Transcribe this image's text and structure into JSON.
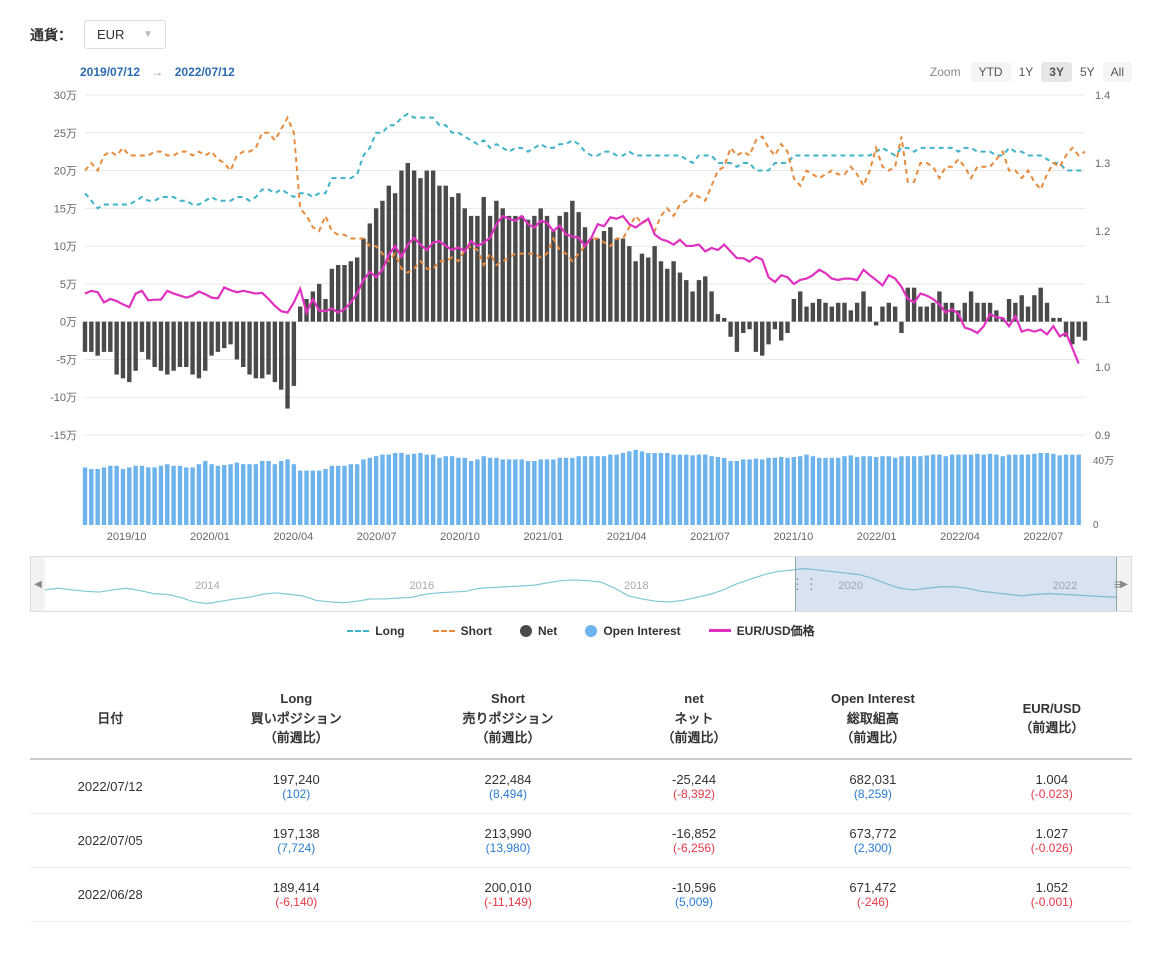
{
  "currency": {
    "label": "通貨：",
    "selected": "EUR"
  },
  "dateRange": {
    "from": "2019/07/12",
    "to": "2022/07/12"
  },
  "zoom": {
    "label": "Zoom",
    "buttons": [
      "YTD",
      "1Y",
      "3Y",
      "5Y",
      "All"
    ],
    "active": "3Y"
  },
  "colors": {
    "long": "#3fb3c9",
    "short": "#e88a3c",
    "net": "#4a4a4a",
    "oi": "#6db3ec",
    "price": "#e030c0",
    "grid": "#e8e8e8",
    "axis_text": "#666666",
    "nav_line": "#7fc9d6"
  },
  "legend": [
    {
      "label": "Long",
      "type": "dash",
      "color": "#3fb3c9"
    },
    {
      "label": "Short",
      "type": "dash",
      "color": "#e88a3c"
    },
    {
      "label": "Net",
      "type": "circle",
      "color": "#4a4a4a"
    },
    {
      "label": "Open Interest",
      "type": "circle",
      "color": "#6db3ec"
    },
    {
      "label": "EUR/USD価格",
      "type": "solid",
      "color": "#e030c0"
    }
  ],
  "chart": {
    "y_left": {
      "min": -15,
      "max": 30,
      "step": 5,
      "suffix": "万"
    },
    "y_right": {
      "min": 0.9,
      "max": 1.4,
      "step": 0.1
    },
    "x_ticks": [
      "2019/10",
      "2020/01",
      "2020/04",
      "2020/07",
      "2020/10",
      "2021/01",
      "2021/04",
      "2021/07",
      "2021/10",
      "2022/01",
      "2022/04",
      "2022/07"
    ],
    "oi_ticks": [
      "0",
      "40万"
    ],
    "net": [
      -4,
      -4,
      -4.5,
      -4,
      -4,
      -7,
      -7.5,
      -8,
      -6.5,
      -4,
      -5,
      -6,
      -6.5,
      -7,
      -6.5,
      -6,
      -6,
      -7,
      -7.5,
      -6.5,
      -4.5,
      -4,
      -3.5,
      -3,
      -5,
      -6,
      -7,
      -7.5,
      -7.5,
      -7,
      -8,
      -9,
      -11.5,
      -8.5,
      2,
      3,
      4,
      5,
      3,
      7,
      7.5,
      7.5,
      8,
      8.5,
      11,
      13,
      15,
      16,
      18,
      17,
      20,
      21,
      20,
      19,
      20,
      20,
      18,
      18,
      16.5,
      17,
      15,
      14,
      14,
      16.5,
      14,
      16,
      15,
      14,
      14,
      14,
      13.5,
      14,
      15,
      14,
      12,
      14,
      14.5,
      16,
      14.5,
      12.5,
      11,
      11,
      12,
      12.5,
      11,
      11,
      10,
      8,
      9,
      8.5,
      10,
      8,
      7,
      8,
      6.5,
      5.5,
      4,
      5.5,
      6,
      4,
      1,
      0.5,
      -2,
      -4,
      -1.5,
      -1,
      -4,
      -4.5,
      -3,
      -1,
      -2.5,
      -1.5,
      3,
      4,
      2,
      2.5,
      3,
      2.5,
      2,
      2.5,
      2.5,
      1.5,
      2.5,
      4,
      2,
      -0.5,
      2,
      2.5,
      2,
      -1.5,
      4.5,
      4.5,
      2,
      2,
      2.5,
      4,
      2.5,
      2.5,
      1.5,
      2.5,
      4,
      2.5,
      2.5,
      2.5,
      1.5,
      0.5,
      3,
      2.5,
      3.5,
      2,
      3.5,
      4.5,
      2.5,
      0.5,
      0.5,
      -2,
      -3,
      -2,
      -2.5
    ],
    "long": [
      17,
      16,
      15,
      15.5,
      15.5,
      15.5,
      15.5,
      15.5,
      16,
      16.5,
      16,
      16,
      16.5,
      16.5,
      16.5,
      16,
      16,
      15.5,
      15.5,
      16,
      16.5,
      16,
      16,
      16,
      16.5,
      16.5,
      16,
      16.5,
      17.5,
      17.5,
      17,
      17.5,
      17,
      16.5,
      17,
      17,
      16.5,
      17,
      17,
      19,
      19,
      19,
      19,
      19.5,
      22,
      23,
      25,
      25,
      26,
      26,
      27,
      27.5,
      27,
      27,
      27,
      27,
      26,
      26,
      25,
      25,
      24.5,
      24,
      23.5,
      24,
      23,
      23.5,
      23,
      22.5,
      23,
      23,
      22.5,
      23,
      23.5,
      23,
      23,
      23.5,
      23.5,
      24,
      23.5,
      22.5,
      22,
      22,
      22.5,
      22.5,
      22,
      22,
      22.5,
      22,
      22,
      22,
      22,
      22,
      22,
      22,
      22,
      21.5,
      21,
      22,
      22,
      22,
      21,
      21,
      21,
      20.5,
      21,
      21,
      20,
      20,
      20,
      21,
      21,
      21,
      22,
      22,
      22,
      22,
      22,
      22,
      22,
      22,
      22,
      22,
      22,
      22,
      22,
      22.5,
      23,
      22.5,
      22,
      23,
      23,
      22.5,
      23,
      23,
      23,
      23,
      23,
      23,
      22.5,
      23,
      23,
      22.5,
      22.5,
      22.5,
      22,
      22,
      23,
      22.5,
      22.5,
      22,
      22,
      22,
      21.5,
      21,
      21,
      20,
      20,
      20,
      20
    ],
    "short": [
      20,
      21,
      20,
      22,
      22.5,
      22,
      23,
      22,
      22,
      22,
      22,
      22.5,
      22.5,
      22,
      22,
      22.5,
      22.5,
      22,
      22.5,
      22,
      22.5,
      21.5,
      21,
      20,
      22,
      22.5,
      22.5,
      23,
      25,
      25,
      24,
      25.5,
      27,
      25,
      15,
      14,
      12.5,
      12,
      14,
      12,
      11.5,
      11.5,
      11,
      11,
      11,
      10,
      10,
      9,
      8,
      9,
      7,
      6.5,
      7,
      8,
      7,
      7,
      8,
      8,
      8.5,
      8,
      9.5,
      10,
      9.5,
      7.5,
      9,
      7.5,
      8,
      8.5,
      9,
      9,
      9,
      9,
      8.5,
      9,
      11,
      9.5,
      9,
      8,
      9,
      10,
      11,
      11,
      10.5,
      10,
      11,
      11,
      12.5,
      14,
      13,
      13.5,
      12,
      14,
      15,
      14,
      15.5,
      16,
      17,
      16.5,
      16,
      18,
      20,
      20.5,
      23,
      22,
      22.5,
      22,
      24,
      24.5,
      23,
      22,
      23.5,
      22.5,
      19,
      18,
      20,
      19.5,
      19,
      19.5,
      20,
      19.5,
      19.5,
      20.5,
      19.5,
      18,
      20,
      23,
      20.5,
      20,
      20.5,
      24.5,
      18.5,
      18.5,
      21,
      21,
      20.5,
      19,
      20.5,
      20.5,
      21.5,
      20.5,
      19,
      20.5,
      20.5,
      20.5,
      21.5,
      22.5,
      20,
      20,
      19,
      20,
      18.5,
      17.5,
      19.5,
      21,
      20.5,
      22,
      23,
      22,
      22.5
    ],
    "price": [
      1.108,
      1.112,
      1.11,
      1.095,
      1.1,
      1.097,
      1.092,
      1.088,
      1.108,
      1.112,
      1.098,
      1.099,
      1.099,
      1.112,
      1.108,
      1.105,
      1.102,
      1.105,
      1.111,
      1.107,
      1.102,
      1.101,
      1.117,
      1.113,
      1.11,
      1.112,
      1.11,
      1.108,
      1.109,
      1.1,
      1.09,
      1.082,
      1.08,
      1.095,
      1.115,
      1.08,
      1.1,
      1.083,
      1.082,
      1.086,
      1.08,
      1.085,
      1.095,
      1.108,
      1.128,
      1.14,
      1.132,
      1.143,
      1.165,
      1.178,
      1.162,
      1.18,
      1.19,
      1.18,
      1.172,
      1.183,
      1.185,
      1.178,
      1.172,
      1.176,
      1.17,
      1.185,
      1.178,
      1.183,
      1.19,
      1.21,
      1.222,
      1.218,
      1.215,
      1.222,
      1.21,
      1.205,
      1.215,
      1.212,
      1.2,
      1.208,
      1.195,
      1.192,
      1.19,
      1.178,
      1.19,
      1.21,
      1.207,
      1.22,
      1.218,
      1.222,
      1.21,
      1.205,
      1.212,
      1.218,
      1.195,
      1.188,
      1.185,
      1.18,
      1.187,
      1.178,
      1.178,
      1.18,
      1.17,
      1.175,
      1.172,
      1.18,
      1.17,
      1.16,
      1.16,
      1.155,
      1.162,
      1.158,
      1.132,
      1.125,
      1.135,
      1.132,
      1.122,
      1.128,
      1.13,
      1.135,
      1.143,
      1.138,
      1.13,
      1.128,
      1.13,
      1.13,
      1.128,
      1.143,
      1.135,
      1.128,
      1.12,
      1.135,
      1.13,
      1.118,
      1.1,
      1.095,
      1.108,
      1.105,
      1.1,
      1.092,
      1.08,
      1.085,
      1.078,
      1.058,
      1.055,
      1.05,
      1.06,
      1.078,
      1.073,
      1.072,
      1.06,
      1.075,
      1.052,
      1.055,
      1.052,
      1.055,
      1.048,
      1.06,
      1.045,
      1.05,
      1.028,
      1.005
    ],
    "oi": [
      36,
      35,
      35,
      36,
      37,
      37,
      35,
      36,
      37,
      37,
      36,
      36,
      37,
      38,
      37,
      37,
      36,
      36,
      38,
      40,
      38,
      37,
      37.5,
      38,
      39,
      38,
      38,
      38,
      40,
      40,
      38,
      40,
      41,
      38,
      34,
      34,
      34,
      34,
      35,
      37,
      37,
      37,
      38,
      38,
      41,
      42,
      43,
      44,
      44,
      45,
      45,
      44,
      44.5,
      45,
      44,
      44,
      42,
      43,
      43,
      42,
      42,
      40,
      41,
      43,
      42,
      42,
      41,
      41,
      41,
      41,
      40,
      40,
      41,
      41,
      41,
      42,
      42,
      42,
      43,
      43,
      43,
      43,
      43,
      44,
      44,
      45,
      46,
      47,
      46,
      45,
      45,
      45,
      45,
      44,
      44,
      44,
      43.5,
      44,
      44,
      43,
      42.5,
      42,
      40,
      40,
      41,
      41,
      41.5,
      41,
      42,
      42,
      42.5,
      42,
      42.5,
      43,
      44,
      43,
      42,
      42,
      42,
      42,
      43,
      43.5,
      42.5,
      43,
      43,
      42.5,
      43,
      43,
      42,
      43,
      43,
      43,
      43,
      43.5,
      44,
      44,
      43,
      44,
      44,
      44,
      44,
      44.5,
      44,
      44.5,
      44,
      43,
      44,
      44,
      44,
      44,
      44.5,
      45,
      45,
      44.5,
      43.5,
      44,
      44,
      44
    ]
  },
  "navigator": {
    "ticks": [
      "2014",
      "2016",
      "2018",
      "2020",
      "2022"
    ],
    "sel_start_pct": 70,
    "sel_end_pct": 100,
    "series": [
      20,
      22,
      20,
      18,
      17,
      20,
      22,
      19,
      15,
      14,
      10,
      4,
      2,
      5,
      8,
      10,
      14,
      16,
      14,
      12,
      6,
      4,
      3,
      5,
      8,
      8,
      9,
      10,
      14,
      16,
      17,
      18,
      22,
      23,
      24,
      25,
      26,
      29,
      32,
      33,
      32,
      30,
      22,
      12,
      8,
      5,
      4,
      6,
      10,
      14,
      20,
      28,
      34,
      40,
      44,
      46,
      48,
      46,
      44,
      42,
      40,
      35,
      28,
      22,
      20,
      22,
      24,
      24,
      22,
      18,
      16,
      14,
      12,
      14,
      15,
      14,
      13,
      12,
      11,
      10
    ]
  },
  "table": {
    "headers": {
      "date": "日付",
      "long": {
        "l1": "Long",
        "l2": "買いポジション",
        "l3": "（前週比）"
      },
      "short": {
        "l1": "Short",
        "l2": "売りポジション",
        "l3": "（前週比）"
      },
      "net": {
        "l1": "net",
        "l2": "ネット",
        "l3": "（前週比）"
      },
      "oi": {
        "l1": "Open Interest",
        "l2": "総取組高",
        "l3": "（前週比）"
      },
      "price": {
        "l1": "EUR/USD",
        "l2": "（前週比）"
      }
    },
    "rows": [
      {
        "date": "2022/07/12",
        "long": "197,240",
        "long_d": "(102)",
        "long_c": "blue",
        "short": "222,484",
        "short_d": "(8,494)",
        "short_c": "blue",
        "net": "-25,244",
        "net_d": "(-8,392)",
        "net_c": "red",
        "oi": "682,031",
        "oi_d": "(8,259)",
        "oi_c": "blue",
        "price": "1.004",
        "price_d": "(-0.023)",
        "price_c": "red"
      },
      {
        "date": "2022/07/05",
        "long": "197,138",
        "long_d": "(7,724)",
        "long_c": "blue",
        "short": "213,990",
        "short_d": "(13,980)",
        "short_c": "blue",
        "net": "-16,852",
        "net_d": "(-6,256)",
        "net_c": "red",
        "oi": "673,772",
        "oi_d": "(2,300)",
        "oi_c": "blue",
        "price": "1.027",
        "price_d": "(-0.026)",
        "price_c": "red"
      },
      {
        "date": "2022/06/28",
        "long": "189,414",
        "long_d": "(-6,140)",
        "long_c": "red",
        "short": "200,010",
        "short_d": "(-11,149)",
        "short_c": "red",
        "net": "-10,596",
        "net_d": "(5,009)",
        "net_c": "blue",
        "oi": "671,472",
        "oi_d": "(-246)",
        "oi_c": "red",
        "price": "1.052",
        "price_d": "(-0.001)",
        "price_c": "red"
      }
    ]
  }
}
